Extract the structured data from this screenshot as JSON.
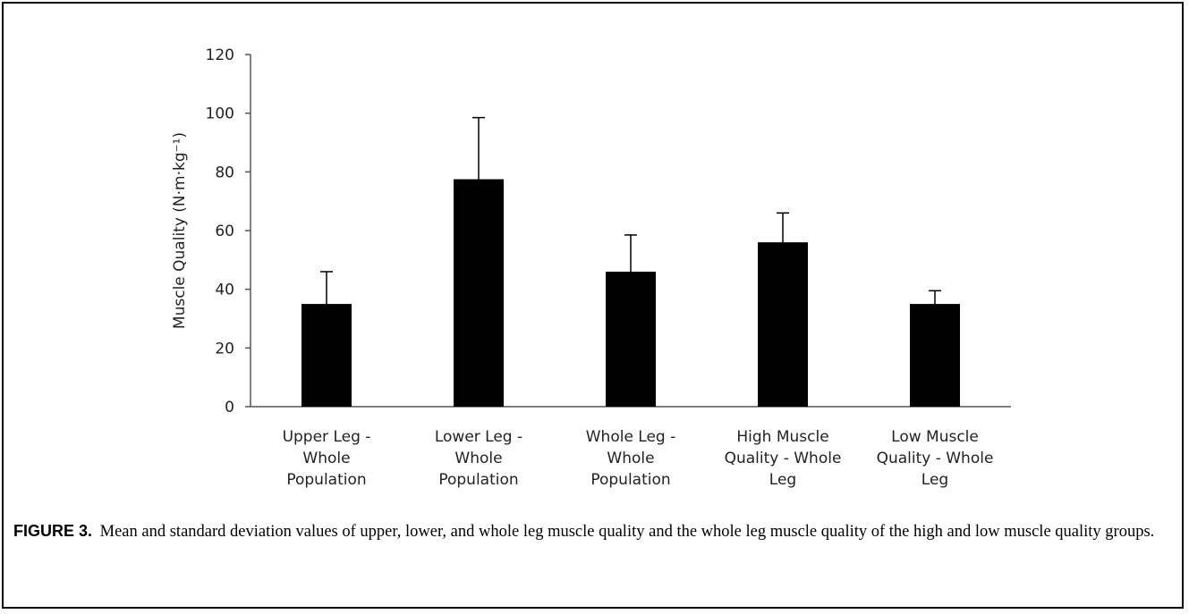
{
  "chart_data": {
    "type": "bar",
    "title": "",
    "xlabel": "",
    "ylabel": "Muscle Quality (N·m·kg⁻¹)",
    "ylim": [
      0,
      120
    ],
    "yticks": [
      0,
      20,
      40,
      60,
      80,
      100,
      120
    ],
    "categories": [
      [
        "Upper Leg -",
        "Whole",
        "Population"
      ],
      [
        "Lower Leg -",
        "Whole",
        "Population"
      ],
      [
        "Whole Leg -",
        "Whole",
        "Population"
      ],
      [
        "High Muscle",
        "Quality - Whole",
        "Leg"
      ],
      [
        "Low Muscle",
        "Quality - Whole",
        "Leg"
      ]
    ],
    "values": [
      35,
      77.5,
      46,
      56,
      35
    ],
    "error": [
      11,
      21,
      12.5,
      10,
      4.5
    ],
    "bar_color": "#000000",
    "grid": false,
    "legend": "none"
  },
  "caption": {
    "label": "FIGURE 3.",
    "text": "Mean and standard deviation values of upper, lower, and whole leg muscle quality and the whole leg muscle quality of the high and low muscle quality groups."
  }
}
